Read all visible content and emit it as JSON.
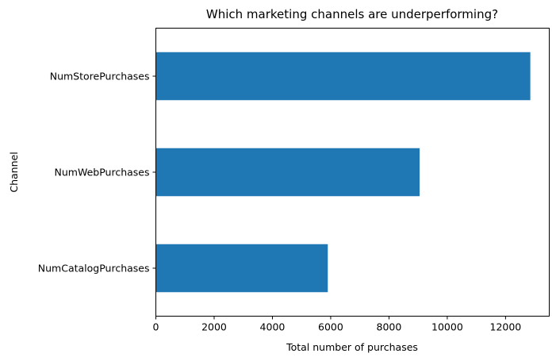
{
  "chart_data": {
    "type": "bar",
    "orientation": "horizontal",
    "title": "Which marketing channels are underperforming?",
    "xlabel": "Total number of purchases",
    "ylabel": "Channel",
    "categories": [
      "NumCatalogPurchases",
      "NumWebPurchases",
      "NumStorePurchases"
    ],
    "values": [
      5900,
      9050,
      12850
    ],
    "xlim": [
      0,
      13500
    ],
    "xticks": [
      0,
      2000,
      4000,
      6000,
      8000,
      10000,
      12000
    ],
    "bar_color": "#1f77b4",
    "grid": false,
    "legend": "none"
  }
}
